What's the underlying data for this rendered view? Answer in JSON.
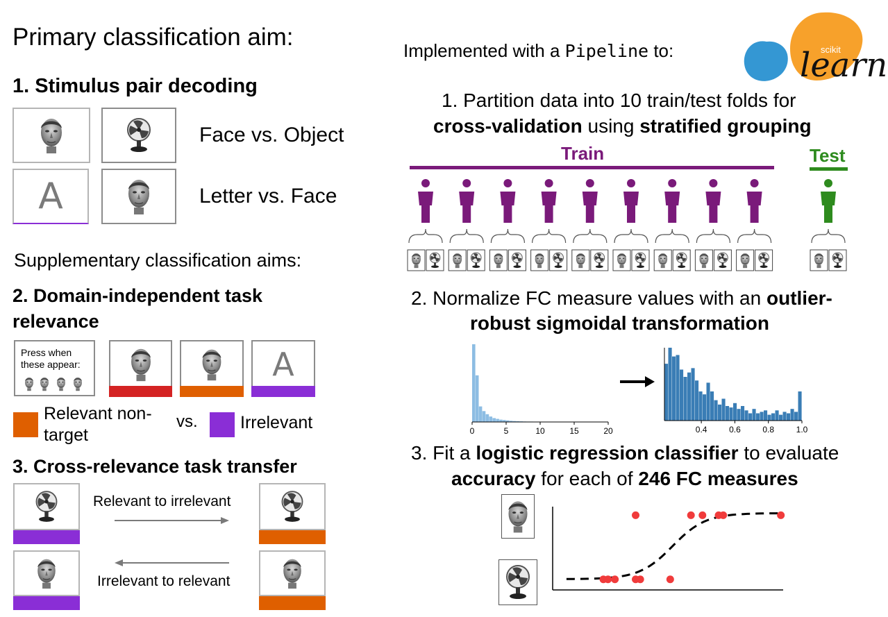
{
  "left": {
    "primary_title": "Primary classification aim:",
    "aim1_title": "1. Stimulus pair decoding",
    "aim1_pairs": [
      "Face vs. Object",
      "Letter vs. Face"
    ],
    "supp_title": "Supplementary classification aims:",
    "aim2_title_line1": "2. Domain-independent task",
    "aim2_title_line2": "relevance",
    "aim2_instruction_line1": "Press when",
    "aim2_instruction_line2": "these appear:",
    "legend_relevant_line1": "Relevant non-",
    "legend_relevant_line2": "target",
    "legend_vs": "vs.",
    "legend_irrelevant": "Irrelevant",
    "aim3_title": "3. Cross-relevance task transfer",
    "transfer_top": "Relevant to irrelevant",
    "transfer_bottom": "Irrelevant to relevant",
    "letter": "A"
  },
  "right": {
    "impl_prefix": "Implemented with a ",
    "impl_code": "Pipeline",
    "impl_suffix": " to:",
    "logo_small": "scikit",
    "logo_big": "learn",
    "step1_line1": "1. Partition data into 10 train/test folds for",
    "step1_bold1": "cross-validation",
    "step1_mid": " using ",
    "step1_bold2": "stratified grouping",
    "train_label": "Train",
    "test_label": "Test",
    "train_subjects": 9,
    "test_subjects": 1,
    "step2_line1_plain": "2. Normalize FC measure values with an ",
    "step2_line1_bold": "outlier-",
    "step2_line2_bold": "robust sigmoidal transformation",
    "step3_line1_plain1": "3. Fit a ",
    "step3_line1_bold": "logistic regression classifier",
    "step3_line1_plain2": " to evaluate",
    "step3_line2_bold1": "accuracy",
    "step3_line2_plain": " for each of ",
    "step3_line2_bold2": "246 FC measures"
  },
  "colors": {
    "train_purple": "#7a1a7a",
    "test_green": "#2e8b1e",
    "relevant_orange": "#df5f00",
    "irrelevant_purple": "#8a2ed6",
    "target_red": "#d42323",
    "hist_raw": "#8dbde3",
    "hist_norm": "#3a7db5",
    "point_red": "#f03b3b",
    "sk_blue": "#3497d3",
    "sk_orange": "#f7a12b"
  },
  "chart_data": [
    {
      "type": "bar",
      "title": "",
      "x_ticks": [
        "0",
        "5",
        "10",
        "15",
        "20"
      ],
      "xlim": [
        0,
        20
      ],
      "bins": [
        0,
        0.5,
        1,
        1.5,
        2,
        2.5,
        3,
        3.5,
        4,
        4.5,
        5,
        5.5,
        6,
        6.5,
        7,
        7.5,
        8,
        9,
        10,
        12,
        14,
        16,
        18
      ],
      "values": [
        100,
        60,
        20,
        14,
        10,
        7,
        5,
        4,
        3,
        2.5,
        2,
        1.5,
        1.2,
        1,
        0.8,
        0.6,
        0.5,
        0.4,
        0.3,
        0.2,
        0.15,
        0.1,
        0.1
      ]
    },
    {
      "type": "bar",
      "title": "",
      "x_ticks": [
        "0.4",
        "0.6",
        "0.8",
        "1.0"
      ],
      "xlim": [
        0.18,
        1.0
      ],
      "values": [
        78,
        100,
        88,
        90,
        70,
        60,
        66,
        72,
        55,
        40,
        36,
        52,
        40,
        28,
        22,
        30,
        20,
        18,
        24,
        16,
        20,
        14,
        10,
        16,
        10,
        12,
        14,
        8,
        10,
        14,
        8,
        12,
        10,
        16,
        12,
        40
      ]
    },
    {
      "type": "scatter",
      "title": "",
      "points": [
        {
          "x": 0.22,
          "y": 0.05
        },
        {
          "x": 0.24,
          "y": 0.05
        },
        {
          "x": 0.27,
          "y": 0.05
        },
        {
          "x": 0.36,
          "y": 0.05
        },
        {
          "x": 0.38,
          "y": 0.05
        },
        {
          "x": 0.51,
          "y": 0.05
        },
        {
          "x": 0.36,
          "y": 0.95
        },
        {
          "x": 0.6,
          "y": 0.95
        },
        {
          "x": 0.65,
          "y": 0.95
        },
        {
          "x": 0.72,
          "y": 0.95
        },
        {
          "x": 0.74,
          "y": 0.95
        },
        {
          "x": 0.99,
          "y": 0.95
        }
      ],
      "fit": "logistic sigmoid"
    }
  ]
}
